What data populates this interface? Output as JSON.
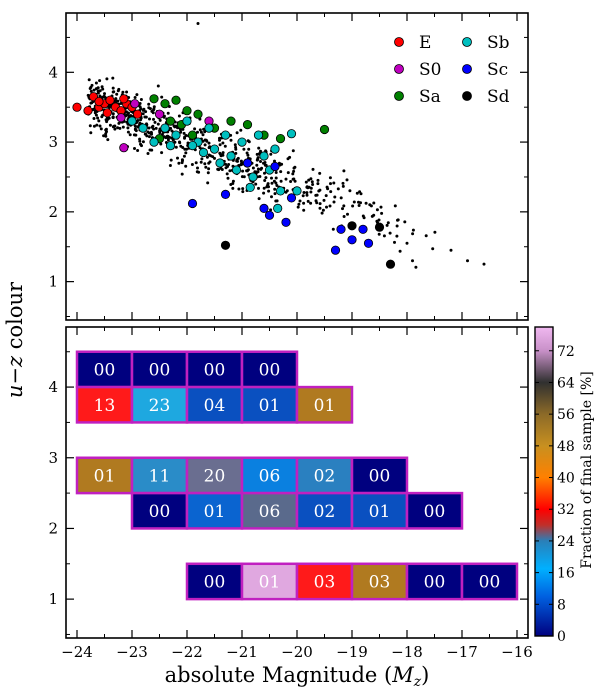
{
  "figure": {
    "ylabel": "u−z colour",
    "xlabel": "absolute Magnitude (M_z)"
  },
  "chart_data": [
    {
      "type": "scatter",
      "title": "",
      "xlabel": "absolute Magnitude (M_z)",
      "ylabel": "u−z colour",
      "xlim": [
        -24.2,
        -15.8
      ],
      "ylim": [
        0.45,
        4.85
      ],
      "yticks": [
        1,
        2,
        3,
        4
      ],
      "legend_position": "top-right",
      "legend": [
        {
          "label": "E",
          "color": "#ff0000"
        },
        {
          "label": "S0",
          "color": "#bf00bf"
        },
        {
          "label": "Sa",
          "color": "#008000"
        },
        {
          "label": "Sb",
          "color": "#00bfbf"
        },
        {
          "label": "Sc",
          "color": "#0000ff"
        },
        {
          "label": "Sd",
          "color": "#000000"
        }
      ],
      "background_sample_note": "Small black dots show the full galaxy sample",
      "series": [
        {
          "name": "E",
          "color": "#ff0000",
          "points": [
            [
              -24.0,
              3.5
            ],
            [
              -23.8,
              3.45
            ],
            [
              -23.7,
              3.65
            ],
            [
              -23.6,
              3.5
            ],
            [
              -23.5,
              3.55
            ],
            [
              -23.4,
              3.6
            ],
            [
              -23.3,
              3.5
            ],
            [
              -23.2,
              3.45
            ],
            [
              -23.1,
              3.55
            ],
            [
              -23.0,
              3.5
            ],
            [
              -22.9,
              3.4
            ],
            [
              -23.45,
              3.42
            ],
            [
              -23.6,
              3.58
            ],
            [
              -23.15,
              3.62
            ]
          ]
        },
        {
          "name": "S0",
          "color": "#bf00bf",
          "points": [
            [
              -23.2,
              3.35
            ],
            [
              -23.15,
              2.92
            ],
            [
              -22.5,
              3.4
            ],
            [
              -21.6,
              3.3
            ],
            [
              -22.95,
              3.55
            ]
          ]
        },
        {
          "name": "Sa",
          "color": "#008000",
          "points": [
            [
              -22.6,
              3.62
            ],
            [
              -22.4,
              3.55
            ],
            [
              -22.2,
              3.6
            ],
            [
              -22.0,
              3.45
            ],
            [
              -22.3,
              3.3
            ],
            [
              -21.8,
              3.4
            ],
            [
              -21.5,
              3.2
            ],
            [
              -21.2,
              3.3
            ],
            [
              -20.9,
              3.25
            ],
            [
              -20.6,
              3.1
            ],
            [
              -20.3,
              3.05
            ],
            [
              -22.5,
              3.05
            ],
            [
              -19.5,
              3.18
            ],
            [
              -21.9,
              3.1
            ],
            [
              -22.1,
              3.25
            ]
          ]
        },
        {
          "name": "Sb",
          "color": "#00bfbf",
          "points": [
            [
              -23.0,
              3.3
            ],
            [
              -22.8,
              3.2
            ],
            [
              -22.6,
              3.0
            ],
            [
              -22.4,
              3.2
            ],
            [
              -22.2,
              3.1
            ],
            [
              -22.0,
              3.3
            ],
            [
              -21.8,
              3.0
            ],
            [
              -21.6,
              3.2
            ],
            [
              -21.5,
              2.9
            ],
            [
              -21.3,
              3.1
            ],
            [
              -21.2,
              2.8
            ],
            [
              -21.0,
              3.0
            ],
            [
              -20.9,
              2.7
            ],
            [
              -20.8,
              2.5
            ],
            [
              -20.7,
              3.1
            ],
            [
              -20.6,
              2.8
            ],
            [
              -20.5,
              2.6
            ],
            [
              -20.4,
              2.9
            ],
            [
              -20.3,
              2.3
            ],
            [
              -20.1,
              3.12
            ],
            [
              -21.1,
              2.6
            ],
            [
              -21.4,
              2.7
            ],
            [
              -21.7,
              2.85
            ],
            [
              -20.0,
              2.3
            ],
            [
              -21.9,
              2.95
            ],
            [
              -22.3,
              2.95
            ],
            [
              -20.35,
              2.05
            ],
            [
              -20.85,
              2.35
            ]
          ]
        },
        {
          "name": "Sc",
          "color": "#0000ff",
          "points": [
            [
              -21.9,
              2.12
            ],
            [
              -21.3,
              2.25
            ],
            [
              -20.9,
              2.7
            ],
            [
              -20.6,
              2.05
            ],
            [
              -20.5,
              1.95
            ],
            [
              -20.2,
              1.85
            ],
            [
              -20.1,
              2.2
            ],
            [
              -19.2,
              1.75
            ],
            [
              -19.0,
              1.6
            ],
            [
              -18.8,
              1.75
            ],
            [
              -18.7,
              1.55
            ],
            [
              -19.3,
              1.45
            ],
            [
              -20.4,
              2.65
            ]
          ]
        },
        {
          "name": "Sd",
          "color": "#000000",
          "points": [
            [
              -21.3,
              1.52
            ],
            [
              -19.0,
              1.8
            ],
            [
              -18.5,
              1.78
            ],
            [
              -18.3,
              1.25
            ]
          ]
        }
      ]
    },
    {
      "type": "heatmap",
      "title": "",
      "xlabel": "absolute Magnitude (M_z)",
      "ylabel": "u−z colour",
      "xlim": [
        -24.2,
        -15.8
      ],
      "ylim": [
        0.45,
        4.85
      ],
      "xticks": [
        -24,
        -23,
        -22,
        -21,
        -20,
        -19,
        -18,
        -17,
        -16
      ],
      "yticks": [
        1,
        2,
        3,
        4
      ],
      "colorbar": {
        "label": "Fraction of final sample [%]",
        "range": [
          0,
          78
        ],
        "ticks": [
          0,
          8,
          16,
          24,
          32,
          40,
          48,
          56,
          64,
          72
        ],
        "stops": [
          {
            "v": 0,
            "color": "#00007f"
          },
          {
            "v": 10,
            "color": "#0060e0"
          },
          {
            "v": 17,
            "color": "#00b0ff"
          },
          {
            "v": 24,
            "color": "#2a7fb8"
          },
          {
            "v": 28,
            "color": "#c0302a"
          },
          {
            "v": 32,
            "color": "#ff0000"
          },
          {
            "v": 40,
            "color": "#ff8000"
          },
          {
            "v": 48,
            "color": "#c89020"
          },
          {
            "v": 56,
            "color": "#8c6a28"
          },
          {
            "v": 64,
            "color": "#303030"
          },
          {
            "v": 72,
            "color": "#c890c8"
          },
          {
            "v": 78,
            "color": "#f0b8f0"
          }
        ]
      },
      "cells": [
        {
          "x0": -24,
          "y0": 4,
          "label": "00",
          "color": "#00007f"
        },
        {
          "x0": -23,
          "y0": 4,
          "label": "00",
          "color": "#00007f"
        },
        {
          "x0": -22,
          "y0": 4,
          "label": "00",
          "color": "#00007f"
        },
        {
          "x0": -21,
          "y0": 4,
          "label": "00",
          "color": "#00007f"
        },
        {
          "x0": -24,
          "y0": 3.5,
          "label": "13",
          "color": "#ff1a1a"
        },
        {
          "x0": -23,
          "y0": 3.5,
          "label": "23",
          "color": "#1ea8e0"
        },
        {
          "x0": -22,
          "y0": 3.5,
          "label": "04",
          "color": "#0a50c0"
        },
        {
          "x0": -21,
          "y0": 3.5,
          "label": "01",
          "color": "#0a50c0"
        },
        {
          "x0": -20,
          "y0": 3.5,
          "label": "01",
          "color": "#b07a20"
        },
        {
          "x0": -24,
          "y0": 2.5,
          "label": "01",
          "color": "#b07a20"
        },
        {
          "x0": -23,
          "y0": 2.5,
          "label": "11",
          "color": "#2a8cc8"
        },
        {
          "x0": -22,
          "y0": 2.5,
          "label": "20",
          "color": "#6a6e90"
        },
        {
          "x0": -21,
          "y0": 2.5,
          "label": "06",
          "color": "#0a80e0"
        },
        {
          "x0": -20,
          "y0": 2.5,
          "label": "02",
          "color": "#2a80c0"
        },
        {
          "x0": -19,
          "y0": 2.5,
          "label": "00",
          "color": "#00007f"
        },
        {
          "x0": -23,
          "y0": 2,
          "label": "00",
          "color": "#00007f"
        },
        {
          "x0": -22,
          "y0": 2,
          "label": "01",
          "color": "#0a64d0"
        },
        {
          "x0": -21,
          "y0": 2,
          "label": "06",
          "color": "#5a6a8c"
        },
        {
          "x0": -20,
          "y0": 2,
          "label": "02",
          "color": "#0a50c0"
        },
        {
          "x0": -19,
          "y0": 2,
          "label": "01",
          "color": "#0a50c0"
        },
        {
          "x0": -18,
          "y0": 2,
          "label": "00",
          "color": "#00007f"
        },
        {
          "x0": -22,
          "y0": 1,
          "label": "00",
          "color": "#00007f"
        },
        {
          "x0": -21,
          "y0": 1,
          "label": "01",
          "color": "#e0a8e0"
        },
        {
          "x0": -20,
          "y0": 1,
          "label": "03",
          "color": "#ff1a1a"
        },
        {
          "x0": -19,
          "y0": 1,
          "label": "03",
          "color": "#b07a20"
        },
        {
          "x0": -18,
          "y0": 1,
          "label": "00",
          "color": "#00007f"
        },
        {
          "x0": -17,
          "y0": 1,
          "label": "00",
          "color": "#00007f"
        }
      ]
    }
  ]
}
